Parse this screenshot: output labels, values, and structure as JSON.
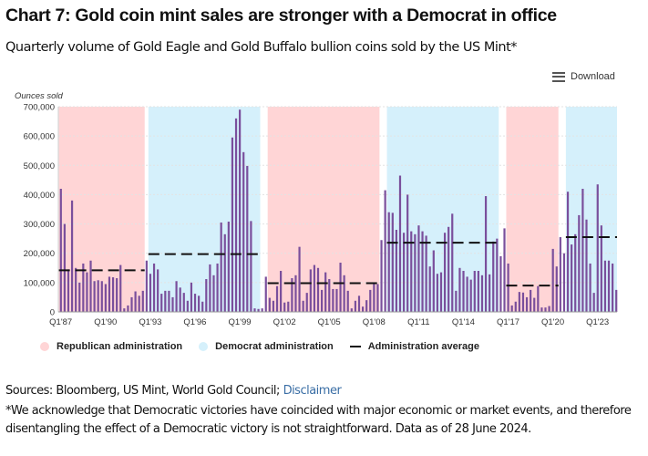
{
  "header": {
    "title": "Chart 7: Gold coin mint sales are stronger with a Democrat in office",
    "subtitle": "Quarterly volume of Gold Eagle and Gold Buffalo bullion coins sold by the US Mint*",
    "download_label": "Download",
    "download_icon": "menu-icon"
  },
  "footer": {
    "sources_prefix": "Sources: Bloomberg, US Mint, World Gold Council; ",
    "disclaimer_link": "Disclaimer",
    "note": "*We acknowledge that Democratic victories have coincided with major economic or market events, and therefore disentangling the effect of a Democratic victory is not straightforward. Data as of 28 June 2024."
  },
  "colors": {
    "bar": "#7a4f9c",
    "republican": "#ffd5d6",
    "democrat": "#d5f0fb",
    "average": "#111111"
  },
  "chart_data": {
    "type": "bar",
    "title": "Chart 7: Gold coin mint sales are stronger with a Democrat in office",
    "ylabel": "Ounces sold",
    "xlabel": "",
    "frequency": "quarterly",
    "x_start": "1987Q1",
    "x_end": "2024Q2",
    "ylim": [
      0,
      700000
    ],
    "yticks": [
      0,
      100000,
      200000,
      300000,
      400000,
      500000,
      600000,
      700000
    ],
    "ytick_labels": [
      "0",
      "100,000",
      "200,000",
      "300,000",
      "400,000",
      "500,000",
      "600,000",
      "700,000"
    ],
    "xtick_labels": [
      "Q1'87",
      "Q1'90",
      "Q1'93",
      "Q1'96",
      "Q1'99",
      "Q1'02",
      "Q1'05",
      "Q1'08",
      "Q1'11",
      "Q1'14",
      "Q1'17",
      "Q1'20",
      "Q1'23"
    ],
    "grid": true,
    "legend_position": "bottom-left",
    "legend": [
      "Republican administration",
      "Democrat administration",
      "Administration average"
    ],
    "values": [
      420000,
      300000,
      145000,
      380000,
      150000,
      100000,
      165000,
      135000,
      175000,
      105000,
      108000,
      105000,
      95000,
      120000,
      118000,
      115000,
      160000,
      12000,
      22000,
      50000,
      70000,
      55000,
      72000,
      175000,
      130000,
      165000,
      145000,
      62000,
      72000,
      72000,
      50000,
      105000,
      83000,
      65000,
      38000,
      100000,
      62000,
      55000,
      35000,
      112000,
      162000,
      125000,
      165000,
      305000,
      265000,
      308000,
      595000,
      660000,
      690000,
      545000,
      498000,
      310000,
      12000,
      10000,
      12000,
      120000,
      48000,
      38000,
      88000,
      140000,
      32000,
      35000,
      115000,
      125000,
      222000,
      38000,
      65000,
      145000,
      160000,
      150000,
      75000,
      135000,
      112000,
      78000,
      78000,
      168000,
      125000,
      72000,
      12000,
      38000,
      55000,
      18000,
      40000,
      75000,
      100000,
      95000,
      245000,
      415000,
      340000,
      338000,
      280000,
      465000,
      270000,
      400000,
      275000,
      265000,
      295000,
      275000,
      260000,
      155000,
      210000,
      130000,
      135000,
      270000,
      290000,
      335000,
      72000,
      150000,
      140000,
      120000,
      110000,
      140000,
      140000,
      125000,
      395000,
      128000,
      240000,
      250000,
      190000,
      285000,
      165000,
      22000,
      35000,
      68000,
      66000,
      50000,
      75000,
      48000,
      88000,
      15000,
      15000,
      20000,
      215000,
      155000,
      255000,
      200000,
      410000,
      230000,
      265000,
      330000,
      420000,
      315000,
      165000,
      65000,
      435000,
      295000,
      175000,
      175000,
      165000,
      75000
    ],
    "administrations": [
      {
        "party": "republican",
        "start": "1987Q1",
        "end": "1992Q3",
        "average": 142000
      },
      {
        "party": "democrat",
        "start": "1993Q1",
        "end": "2000Q2",
        "average": 197000
      },
      {
        "party": "republican",
        "start": "2001Q1",
        "end": "2008Q2",
        "average": 98000
      },
      {
        "party": "democrat",
        "start": "2009Q1",
        "end": "2016Q2",
        "average": 236000
      },
      {
        "party": "republican",
        "start": "2017Q1",
        "end": "2020Q2",
        "average": 90000
      },
      {
        "party": "democrat",
        "start": "2021Q1",
        "end": "2024Q2",
        "average": 255000
      }
    ]
  }
}
